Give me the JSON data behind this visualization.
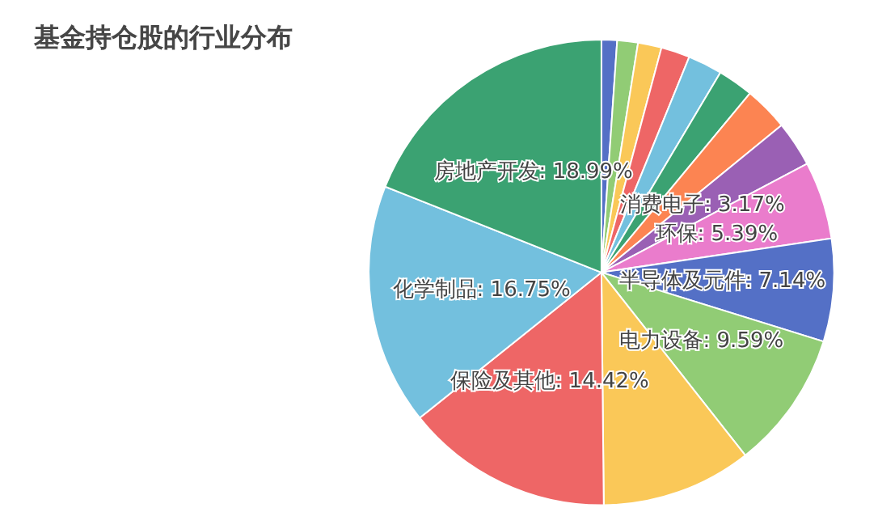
{
  "chart_data": {
    "type": "pie",
    "title": "基金持仓股的行业分布",
    "categories": [
      null,
      null,
      null,
      null,
      null,
      null,
      null,
      "消费电子",
      "环保",
      "半导体及元件",
      "电力设备",
      null,
      "保险及其他",
      "化学制品",
      "房地产开发"
    ],
    "values": [
      1.08,
      1.44,
      1.64,
      2.0,
      2.39,
      2.47,
      3.08,
      3.17,
      5.39,
      7.14,
      9.59,
      10.45,
      14.42,
      16.75,
      18.99
    ],
    "colors": [
      "#5470c6",
      "#91cc75",
      "#fac858",
      "#ee6666",
      "#73c0de",
      "#3ba272",
      "#fc8452",
      "#9a60b4",
      "#ea7ccc",
      "#5470c6",
      "#91cc75",
      "#fac858",
      "#ee6666",
      "#73c0de",
      "#3ba272"
    ],
    "value_labels": [
      null,
      null,
      null,
      null,
      null,
      null,
      null,
      "3.17%",
      "5.39%",
      "7.14%",
      "9.59%",
      null,
      "14.42%",
      "16.75%",
      "18.99%"
    ],
    "legend": false
  }
}
